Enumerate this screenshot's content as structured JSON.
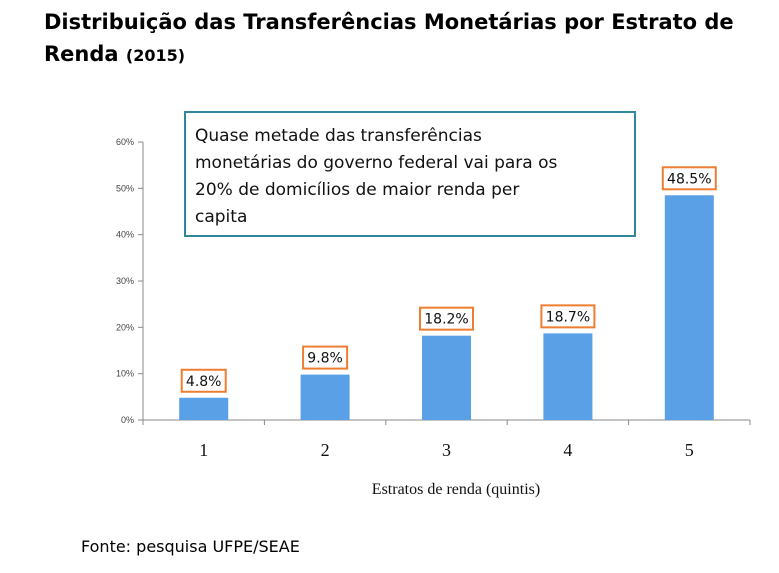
{
  "title_main": "Distribuição das Transferências Monetárias por Estrato de Renda",
  "title_year": "(2015)",
  "source": "Fonte: pesquisa UFPE/SEAE",
  "colors": {
    "bar": "#5aa0e6",
    "label_border": "#ed7d31",
    "annotation_border": "#31859c",
    "axis": "#888888"
  },
  "chart_data": {
    "type": "bar",
    "title": "Distribuição das Transferências Monetárias por Estrato de Renda (2015)",
    "categories": [
      "1",
      "2",
      "3",
      "4",
      "5"
    ],
    "values": [
      4.8,
      9.8,
      18.2,
      18.7,
      48.5
    ],
    "data_labels": [
      "4.8%",
      "9.8%",
      "18.2%",
      "18.7%",
      "48.5%"
    ],
    "xlabel": "Estratos de renda (quintis)",
    "ylabel": "",
    "ylim": [
      0,
      60
    ],
    "yticks": [
      0,
      10,
      20,
      30,
      40,
      50,
      60
    ],
    "ytick_labels": [
      "0%",
      "10%",
      "20%",
      "30%",
      "40%",
      "50%",
      "60%"
    ],
    "annotation": [
      "Quase metade das transferências",
      "monetárias do governo federal  vai para os",
      "20% de domicílios de maior renda per",
      "capita"
    ]
  }
}
